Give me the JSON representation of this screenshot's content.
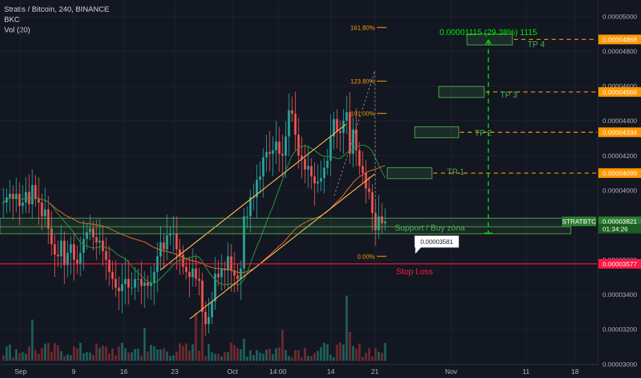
{
  "header": {
    "symbol_line": "Stratis / Bitcoin, 240, BINANCE",
    "indicator_1": "BKC",
    "indicator_2": "Vol (20)"
  },
  "colors": {
    "background": "#131722",
    "grid": "#1e2230",
    "candle_up": "#26a69a",
    "candle_down": "#ef5350",
    "fib": "#ff9800",
    "tp_green": "#4caf50",
    "tp_label_green": "#00e600",
    "tp_dash_orange": "#ff9800",
    "stop_red": "#ff1744",
    "ma_orange": "#e0632c",
    "ma_green": "#2e8b3a",
    "channel": "#ffb74d",
    "axis_text": "#b2b5be"
  },
  "chart_data": {
    "type": "candlestick",
    "title": "Stratis / Bitcoin, 240, BINANCE",
    "y_axis_ticks": [
      "0.00005000",
      "0.00004800",
      "0.00004600",
      "0.00004400",
      "0.00004200",
      "0.00004000",
      "0.00003800",
      "0.00003600",
      "0.00003400",
      "0.00003200",
      "0.00003000"
    ],
    "x_axis_ticks": [
      "Sep",
      "9",
      "16",
      "23",
      "Oct",
      "14:00",
      "14",
      "21",
      "Nov",
      "11",
      "18"
    ],
    "ylim": [
      2.92e-05,
      5.095e-05
    ],
    "price_labels": [
      {
        "label": "0.00004868",
        "value": 4.868e-05,
        "style": "orange"
      },
      {
        "label": "0.00004566",
        "value": 4.566e-05,
        "style": "orange"
      },
      {
        "label": "0.00004334",
        "value": 4.334e-05,
        "style": "orange"
      },
      {
        "label": "0.00004099",
        "value": 4.099e-05,
        "style": "orange"
      },
      {
        "label": "0.00003821",
        "value": 3.821e-05,
        "style": "current"
      },
      {
        "label": "01:34:26",
        "value": 3.779e-05,
        "style": "countdown"
      },
      {
        "label": "0.00003577",
        "value": 3.577e-05,
        "style": "red"
      }
    ],
    "symbol_tag": "STRATBTC",
    "fib_levels": [
      {
        "label": "161.80%",
        "value": 4.937e-05
      },
      {
        "label": "123.80%",
        "value": 4.628e-05
      },
      {
        "label": "101.00%",
        "value": 4.442e-05
      },
      {
        "label": "0.00%",
        "value": 3.62e-05
      }
    ],
    "take_profits": [
      {
        "label": "TP 1",
        "value": 4.099e-05
      },
      {
        "label": "TP 2",
        "value": 4.334e-05
      },
      {
        "label": "TP 3",
        "value": 4.566e-05
      },
      {
        "label": "TP 4",
        "value": 4.868e-05
      }
    ],
    "measure_label": "0.00001115 (29.38%) 1115",
    "support_label": "Support / Buy zóna",
    "stop_loss_label": "Stop Loss",
    "stop_loss_value": 3.577e-05,
    "callout_label": "0.00003581",
    "close_series": [
      3.93e-05,
      3.96e-05,
      3.98e-05,
      3.95e-05,
      3.98e-05,
      3.91e-05,
      3.93e-05,
      3.99e-05,
      3.92e-05,
      4.03e-05,
      3.95e-05,
      3.93e-05,
      3.85e-05,
      3.89e-05,
      3.78e-05,
      3.69e-05,
      3.63e-05,
      3.62e-05,
      3.71e-05,
      3.57e-05,
      3.64e-05,
      3.69e-05,
      3.6e-05,
      3.58e-05,
      3.64e-05,
      3.72e-05,
      3.76e-05,
      3.78e-05,
      3.73e-05,
      3.7e-05,
      3.71e-05,
      3.65e-05,
      3.6e-05,
      3.53e-05,
      3.49e-05,
      3.44e-05,
      3.42e-05,
      3.46e-05,
      3.49e-05,
      3.44e-05,
      3.44e-05,
      3.49e-05,
      3.49e-05,
      3.45e-05,
      3.47e-05,
      3.45e-05,
      3.47e-05,
      3.53e-05,
      3.62e-05,
      3.7e-05,
      3.66e-05,
      3.74e-05,
      3.75e-05,
      3.75e-05,
      3.66e-05,
      3.63e-05,
      3.56e-05,
      3.53e-05,
      3.5e-05,
      3.55e-05,
      3.49e-05,
      3.48e-05,
      3.3e-05,
      3.23e-05,
      3.27e-05,
      3.36e-05,
      3.52e-05,
      3.5e-05,
      3.55e-05,
      3.54e-05,
      3.62e-05,
      3.54e-05,
      3.51e-05,
      3.49e-05,
      3.55e-05,
      3.85e-05,
      3.85e-05,
      3.96e-05,
      3.96e-05,
      4.06e-05,
      4.08e-05,
      4.19e-05,
      4.22e-05,
      4.21e-05,
      4.23e-05,
      4.28e-05,
      4.21e-05,
      4.2e-05,
      4.31e-05,
      4.46e-05,
      4.44e-05,
      4.32e-05,
      4.2e-05,
      4.18e-05,
      4.12e-05,
      4.14e-05,
      4.08e-05,
      4.04e-05,
      4.05e-05,
      4.07e-05,
      4.13e-05,
      4.17e-05,
      4.31e-05,
      4.41e-05,
      4.34e-05,
      4.33e-05,
      4.4e-05,
      4.45e-05,
      4.21e-05,
      4.35e-05,
      4.23e-05,
      4.14e-05,
      4.1e-05,
      4.01e-05,
      3.99e-05,
      3.87e-05,
      3.77e-05,
      3.85e-05,
      3.81e-05,
      3.82e-05
    ]
  }
}
